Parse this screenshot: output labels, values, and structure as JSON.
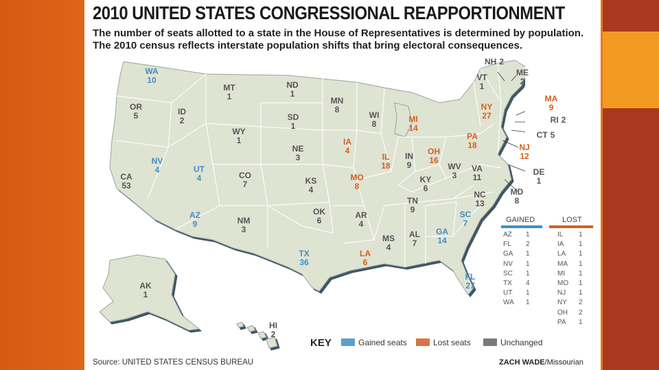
{
  "title": "2010 UNITED STATES CONGRESSIONAL REAPPORTIONMENT",
  "subtitle": [
    "The number of seats allotted to a state in the House of Representatives is determined by population.",
    "The 2010 census reflects interstate population shifts that bring electoral consequences."
  ],
  "colors": {
    "gained": "#3f8fc8",
    "lost": "#d45f22",
    "unchanged": "#7a7a7a",
    "land": "#dfe3d2",
    "border": "#4f6473"
  },
  "states": [
    {
      "abbr": "WA",
      "seats": "10",
      "status": "gained"
    },
    {
      "abbr": "OR",
      "seats": "5",
      "status": "unchanged"
    },
    {
      "abbr": "CA",
      "seats": "53",
      "status": "unchanged"
    },
    {
      "abbr": "NV",
      "seats": "4",
      "status": "gained"
    },
    {
      "abbr": "ID",
      "seats": "2",
      "status": "unchanged"
    },
    {
      "abbr": "UT",
      "seats": "4",
      "status": "gained"
    },
    {
      "abbr": "AZ",
      "seats": "9",
      "status": "gained"
    },
    {
      "abbr": "MT",
      "seats": "1",
      "status": "unchanged"
    },
    {
      "abbr": "WY",
      "seats": "1",
      "status": "unchanged"
    },
    {
      "abbr": "CO",
      "seats": "7",
      "status": "unchanged"
    },
    {
      "abbr": "NM",
      "seats": "3",
      "status": "unchanged"
    },
    {
      "abbr": "ND",
      "seats": "1",
      "status": "unchanged"
    },
    {
      "abbr": "SD",
      "seats": "1",
      "status": "unchanged"
    },
    {
      "abbr": "NE",
      "seats": "3",
      "status": "unchanged"
    },
    {
      "abbr": "KS",
      "seats": "4",
      "status": "unchanged"
    },
    {
      "abbr": "OK",
      "seats": "6",
      "status": "unchanged"
    },
    {
      "abbr": "TX",
      "seats": "36",
      "status": "gained"
    },
    {
      "abbr": "MN",
      "seats": "8",
      "status": "unchanged"
    },
    {
      "abbr": "IA",
      "seats": "4",
      "status": "lost"
    },
    {
      "abbr": "MO",
      "seats": "8",
      "status": "lost"
    },
    {
      "abbr": "AR",
      "seats": "4",
      "status": "unchanged"
    },
    {
      "abbr": "LA",
      "seats": "6",
      "status": "lost"
    },
    {
      "abbr": "WI",
      "seats": "8",
      "status": "unchanged"
    },
    {
      "abbr": "IL",
      "seats": "18",
      "status": "lost"
    },
    {
      "abbr": "MI",
      "seats": "14",
      "status": "lost"
    },
    {
      "abbr": "IN",
      "seats": "9",
      "status": "unchanged"
    },
    {
      "abbr": "OH",
      "seats": "16",
      "status": "lost"
    },
    {
      "abbr": "KY",
      "seats": "6",
      "status": "unchanged"
    },
    {
      "abbr": "TN",
      "seats": "9",
      "status": "unchanged"
    },
    {
      "abbr": "MS",
      "seats": "4",
      "status": "unchanged"
    },
    {
      "abbr": "AL",
      "seats": "7",
      "status": "unchanged"
    },
    {
      "abbr": "GA",
      "seats": "14",
      "status": "gained"
    },
    {
      "abbr": "FL",
      "seats": "27",
      "status": "gained"
    },
    {
      "abbr": "SC",
      "seats": "7",
      "status": "gained"
    },
    {
      "abbr": "NC",
      "seats": "13",
      "status": "unchanged"
    },
    {
      "abbr": "VA",
      "seats": "11",
      "status": "unchanged"
    },
    {
      "abbr": "WV",
      "seats": "3",
      "status": "unchanged"
    },
    {
      "abbr": "PA",
      "seats": "18",
      "status": "lost"
    },
    {
      "abbr": "NY",
      "seats": "27",
      "status": "lost"
    },
    {
      "abbr": "VT",
      "seats": "1",
      "status": "unchanged"
    },
    {
      "abbr": "NH",
      "seats": "2",
      "status": "unchanged"
    },
    {
      "abbr": "ME",
      "seats": "2",
      "status": "unchanged"
    },
    {
      "abbr": "MA",
      "seats": "9",
      "status": "lost"
    },
    {
      "abbr": "RI",
      "seats": "2",
      "status": "unchanged"
    },
    {
      "abbr": "CT",
      "seats": "5",
      "status": "unchanged"
    },
    {
      "abbr": "NJ",
      "seats": "12",
      "status": "lost"
    },
    {
      "abbr": "DE",
      "seats": "1",
      "status": "unchanged"
    },
    {
      "abbr": "MD",
      "seats": "8",
      "status": "unchanged"
    },
    {
      "abbr": "AK",
      "seats": "1",
      "status": "unchanged"
    },
    {
      "abbr": "HI",
      "seats": "2",
      "status": "unchanged"
    }
  ],
  "legend": {
    "gained_heading": "GAINED",
    "lost_heading": "LOST",
    "gained": [
      [
        "AZ",
        "1"
      ],
      [
        "FL",
        "2"
      ],
      [
        "GA",
        "1"
      ],
      [
        "NV",
        "1"
      ],
      [
        "SC",
        "1"
      ],
      [
        "TX",
        "4"
      ],
      [
        "UT",
        "1"
      ],
      [
        "WA",
        "1"
      ]
    ],
    "lost": [
      [
        "IL",
        "1"
      ],
      [
        "IA",
        "1"
      ],
      [
        "LA",
        "1"
      ],
      [
        "MA",
        "1"
      ],
      [
        "MI",
        "1"
      ],
      [
        "MO",
        "1"
      ],
      [
        "NJ",
        "1"
      ],
      [
        "NY",
        "2"
      ],
      [
        "OH",
        "2"
      ],
      [
        "PA",
        "1"
      ]
    ]
  },
  "key": {
    "label": "KEY",
    "gained": "Gained seats",
    "lost": "Lost seats",
    "unchanged": "Unchanged"
  },
  "source": "Source: UNITED STATES CENSUS BUREAU",
  "credit_name": "ZACH WADE",
  "credit_org": "/Missourian"
}
